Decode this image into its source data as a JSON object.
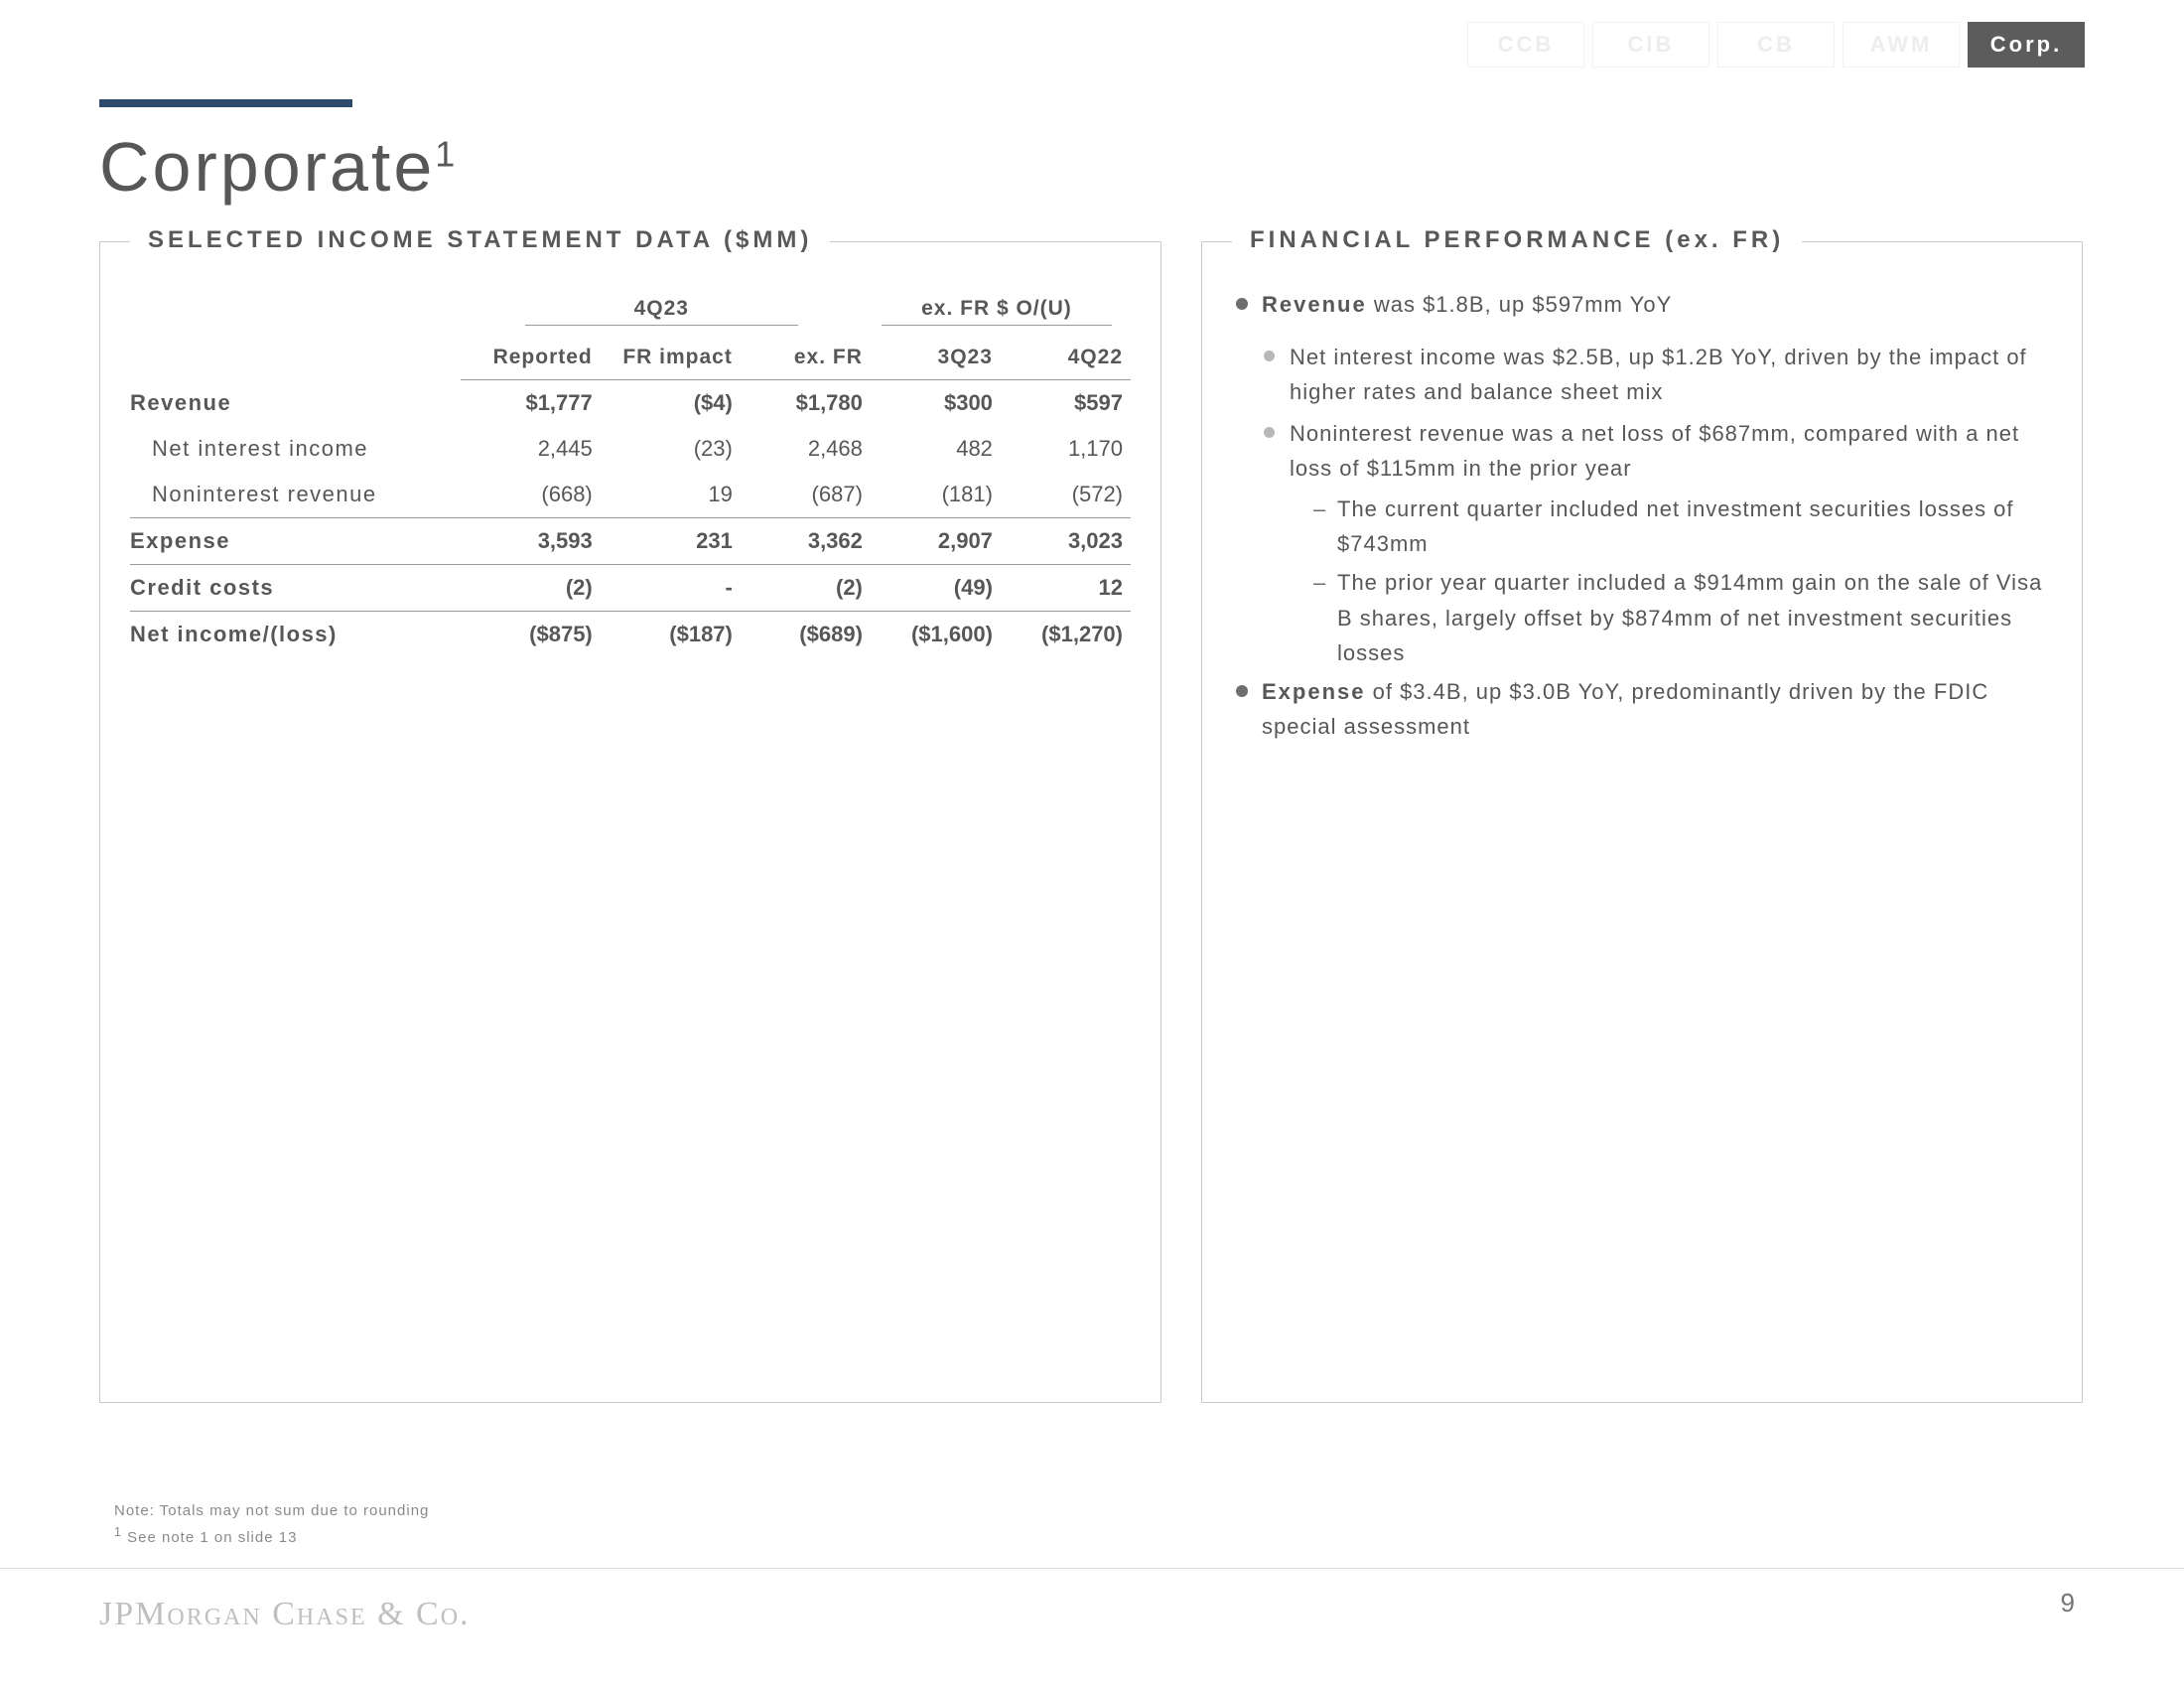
{
  "tabs": {
    "items": [
      {
        "label": "CCB",
        "active": false
      },
      {
        "label": "CIB",
        "active": false
      },
      {
        "label": "CB",
        "active": false
      },
      {
        "label": "AWM",
        "active": false
      },
      {
        "label": "Corp.",
        "active": true
      }
    ]
  },
  "title": {
    "text": "Corporate",
    "sup": "1"
  },
  "table": {
    "title": "SELECTED INCOME STATEMENT DATA ($MM)",
    "super_headers": {
      "q": "4Q23",
      "ou": "ex. FR $ O/(U)"
    },
    "headers": {
      "c1": "Reported",
      "c2": "FR impact",
      "c3": "ex. FR",
      "c4": "3Q23",
      "c5": "4Q22"
    },
    "rows": [
      {
        "label": "Revenue",
        "bold": true,
        "indent": 0,
        "topline": false,
        "c1": "$1,777",
        "c2": "($4)",
        "c3": "$1,780",
        "c4": "$300",
        "c5": "$597"
      },
      {
        "label": "Net interest income",
        "bold": false,
        "indent": 1,
        "topline": false,
        "c1": "2,445",
        "c2": "(23)",
        "c3": "2,468",
        "c4": "482",
        "c5": "1,170"
      },
      {
        "label": "Noninterest revenue",
        "bold": false,
        "indent": 1,
        "topline": false,
        "c1": "(668)",
        "c2": "19",
        "c3": "(687)",
        "c4": "(181)",
        "c5": "(572)"
      },
      {
        "label": "Expense",
        "bold": true,
        "indent": 0,
        "topline": true,
        "c1": "3,593",
        "c2": "231",
        "c3": "3,362",
        "c4": "2,907",
        "c5": "3,023"
      },
      {
        "label": "Credit costs",
        "bold": true,
        "indent": 0,
        "topline": true,
        "c1": "(2)",
        "c2": "-",
        "c3": "(2)",
        "c4": "(49)",
        "c5": "12"
      },
      {
        "label": "Net income/(loss)",
        "bold": true,
        "indent": 0,
        "topline": true,
        "c1": "($875)",
        "c2": "($187)",
        "c3": "($689)",
        "c4": "($1,600)",
        "c5": "($1,270)"
      }
    ]
  },
  "perf": {
    "title": "FINANCIAL PERFORMANCE (ex. FR)",
    "items": [
      {
        "level": 1,
        "html": "<b>Revenue</b> was $1.8B, up $597mm YoY"
      },
      {
        "level": 2,
        "html": "Net interest income was $2.5B, up $1.2B YoY, driven by the impact of higher rates and balance sheet mix"
      },
      {
        "level": 2,
        "html": "Noninterest revenue was a net loss of $687mm, compared with a net loss of $115mm in the prior year"
      },
      {
        "level": 3,
        "html": "The current quarter included net investment securities losses of $743mm"
      },
      {
        "level": 3,
        "html": "The prior year quarter included a $914mm gain on the sale of Visa B shares, largely offset by $874mm of net investment securities losses"
      },
      {
        "level": 1,
        "html": "<b>Expense</b> of $3.4B, up $3.0B YoY, predominantly driven by the FDIC special assessment"
      }
    ]
  },
  "footnotes": {
    "l1": "Note: Totals may not sum due to rounding",
    "l2": "See note 1 on slide 13",
    "l2_sup": "1"
  },
  "brand": "JPMorgan Chase & Co.",
  "page_number": "9"
}
